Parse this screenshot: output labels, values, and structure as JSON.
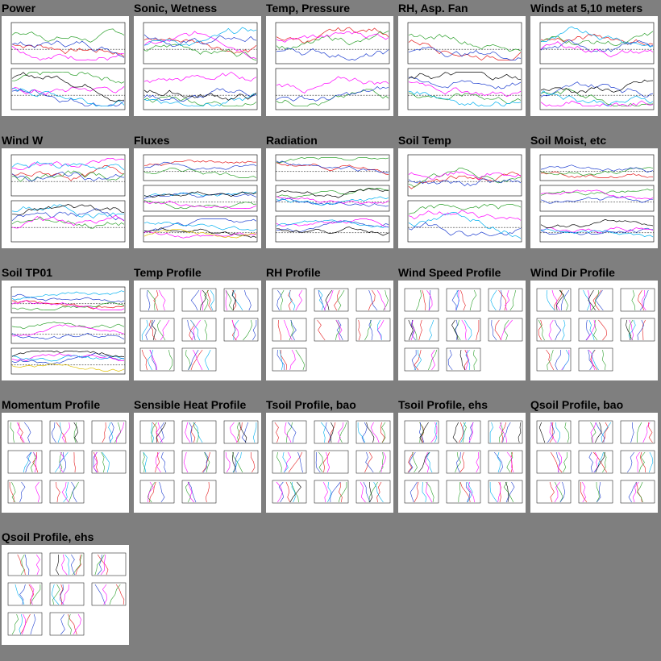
{
  "page": {
    "background": "#7f7f7f"
  },
  "tiles": [
    {
      "title": "Power",
      "kind": "ts2"
    },
    {
      "title": "Sonic, Wetness",
      "kind": "ts2"
    },
    {
      "title": "Temp, Pressure",
      "kind": "ts2"
    },
    {
      "title": "RH, Asp. Fan",
      "kind": "ts2"
    },
    {
      "title": "Winds at 5,10 meters",
      "kind": "ts2"
    },
    {
      "title": "Wind W",
      "kind": "ts2"
    },
    {
      "title": "Fluxes",
      "kind": "ts3"
    },
    {
      "title": "Radiation",
      "kind": "ts3"
    },
    {
      "title": "Soil Temp",
      "kind": "ts2"
    },
    {
      "title": "Soil Moist, etc",
      "kind": "ts3"
    },
    {
      "title": "Soil TP01",
      "kind": "ts3"
    },
    {
      "title": "Temp Profile",
      "kind": "profile",
      "rows": [
        3,
        3,
        2
      ]
    },
    {
      "title": "RH Profile",
      "kind": "profile",
      "rows": [
        3,
        3,
        1
      ]
    },
    {
      "title": "Wind Speed Profile",
      "kind": "profile",
      "rows": [
        3,
        3,
        2
      ]
    },
    {
      "title": "Wind Dir Profile",
      "kind": "profile",
      "rows": [
        3,
        3,
        2
      ]
    },
    {
      "title": "Momentum Profile",
      "kind": "profile",
      "rows": [
        3,
        3,
        2
      ]
    },
    {
      "title": "Sensible Heat Profile",
      "kind": "profile",
      "rows": [
        3,
        3,
        2
      ]
    },
    {
      "title": "Tsoil Profile, bao",
      "kind": "profile",
      "rows": [
        3,
        3,
        3
      ]
    },
    {
      "title": "Tsoil Profile, ehs",
      "kind": "profile",
      "rows": [
        3,
        3,
        3
      ]
    },
    {
      "title": "Qsoil Profile, bao",
      "kind": "profile",
      "rows": [
        3,
        3,
        3
      ]
    },
    {
      "title": "Qsoil Profile, ehs",
      "kind": "profile",
      "rows": [
        3,
        3,
        2
      ]
    }
  ],
  "series_colors": [
    "#e41a1c",
    "#2ca02c",
    "#1f3fd0",
    "#ff00ff",
    "#00b0f0",
    "#000000",
    "#e0c000",
    "#ff8000"
  ]
}
